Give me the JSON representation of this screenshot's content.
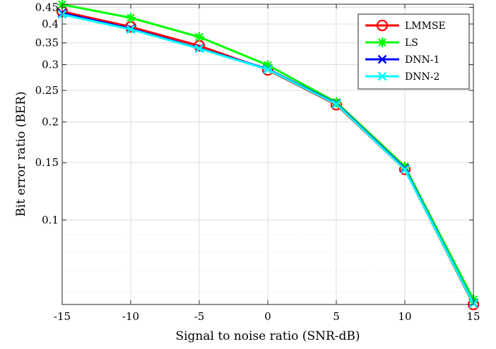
{
  "chart_data": {
    "type": "line",
    "xlabel": "Signal to noise ratio (SNR-dB)",
    "ylabel": "Bit error ratio (BER)",
    "x": [
      -15,
      -10,
      -5,
      0,
      5,
      10,
      15
    ],
    "xlim": [
      -15,
      15
    ],
    "ylim": [
      0.055,
      0.46
    ],
    "y_scale": "log",
    "x_ticks": [
      -15,
      -10,
      -5,
      0,
      5,
      10,
      15
    ],
    "x_tick_labels": [
      "-15",
      "-10",
      "-5",
      "0",
      "5",
      "10",
      "15"
    ],
    "y_ticks": [
      0.1,
      0.15,
      0.2,
      0.25,
      0.3,
      0.35,
      0.4,
      0.45
    ],
    "y_tick_labels": [
      "0.1",
      "0.15",
      "0.2",
      "0.25",
      "0.3",
      "0.35",
      "0.4",
      "0.45"
    ],
    "grid": true,
    "legend_position": "top-right",
    "series": [
      {
        "name": "LMMSE",
        "values": [
          0.437,
          0.392,
          0.343,
          0.289,
          0.226,
          0.143,
          0.055
        ],
        "color": "#ff0000",
        "marker": "circle"
      },
      {
        "name": "LS",
        "values": [
          0.459,
          0.418,
          0.365,
          0.299,
          0.23,
          0.146,
          0.057
        ],
        "color": "#00ff00",
        "marker": "star"
      },
      {
        "name": "DNN-1",
        "values": [
          0.432,
          0.387,
          0.337,
          0.291,
          0.228,
          0.144,
          0.0555
        ],
        "color": "#0000ff",
        "marker": "x"
      },
      {
        "name": "DNN-2",
        "values": [
          0.428,
          0.385,
          0.336,
          0.29,
          0.227,
          0.143,
          0.0553
        ],
        "color": "#00ffff",
        "marker": "x"
      }
    ]
  }
}
